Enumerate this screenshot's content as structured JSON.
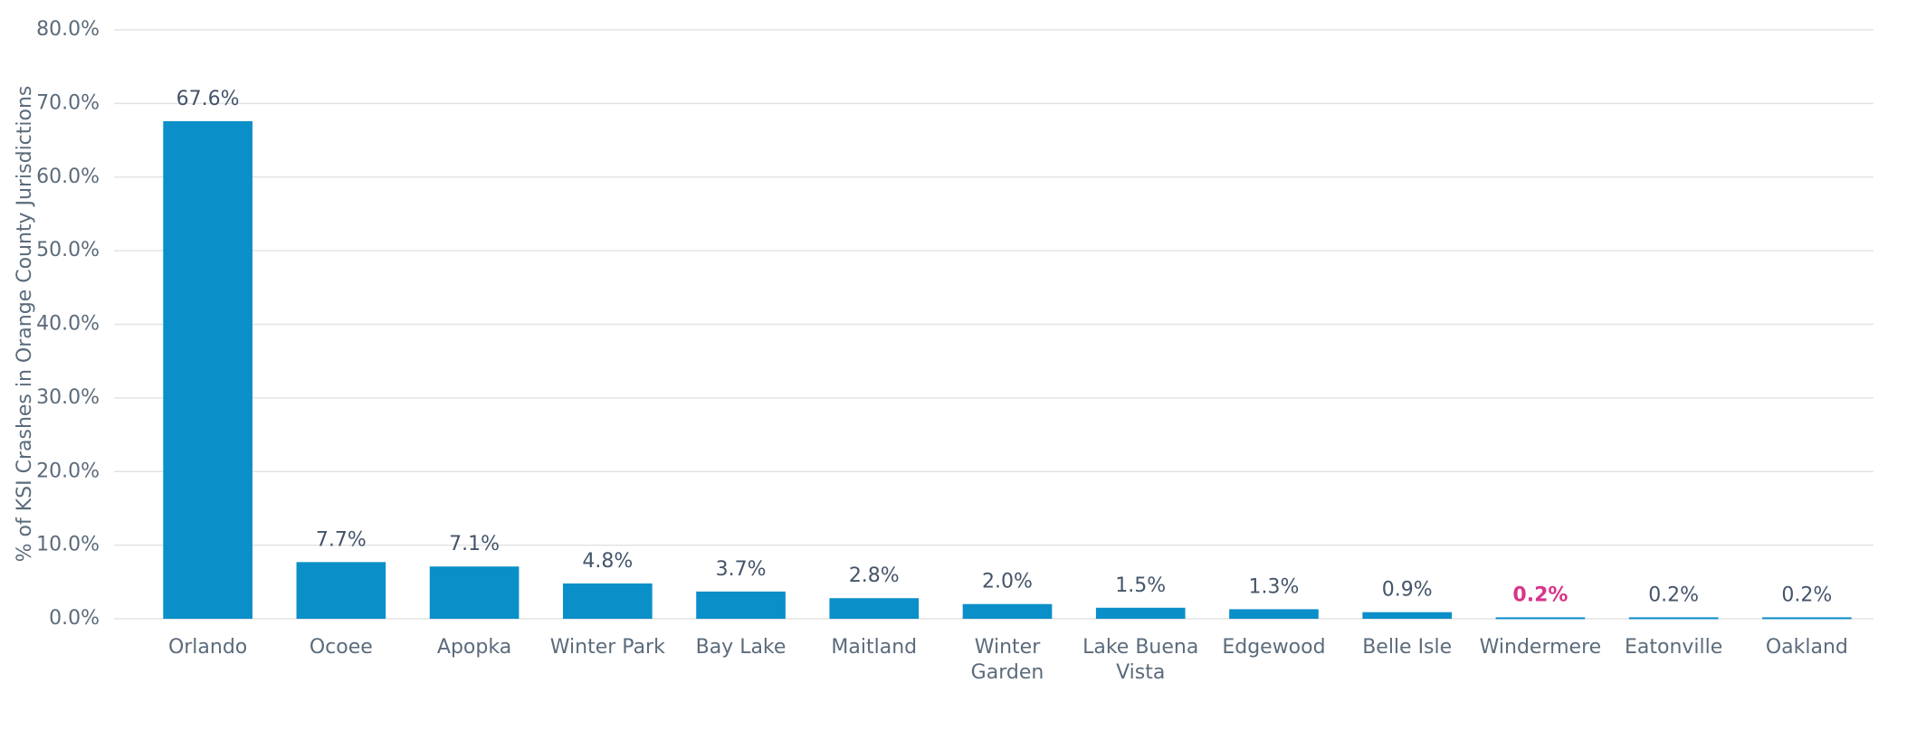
{
  "chart_data": {
    "type": "bar",
    "y_label": "% of KSI Crashes in Orange County Jurisdictions",
    "categories": [
      "Orlando",
      "Ocoee",
      "Apopka",
      "Winter Park",
      "Bay Lake",
      "Maitland",
      "Winter Garden",
      "Lake Buena Vista",
      "Edgewood",
      "Belle Isle",
      "Windermere",
      "Eatonville",
      "Oakland"
    ],
    "values": [
      67.6,
      7.7,
      7.1,
      4.8,
      3.7,
      2.8,
      2.0,
      1.5,
      1.3,
      0.9,
      0.2,
      0.2,
      0.2
    ],
    "value_labels": [
      "67.6%",
      "7.7%",
      "7.1%",
      "4.8%",
      "3.7%",
      "2.8%",
      "2.0%",
      "1.5%",
      "1.3%",
      "0.9%",
      "0.2%",
      "0.2%",
      "0.2%"
    ],
    "value_label_colors": [
      "#44546a",
      "#44546a",
      "#44546a",
      "#44546a",
      "#44546a",
      "#44546a",
      "#44546a",
      "#44546a",
      "#44546a",
      "#44546a",
      "#d6368a",
      "#44546a",
      "#44546a"
    ],
    "color": "#0b8fc9",
    "ylim": [
      0,
      80
    ],
    "yticks": [
      {
        "value": 0,
        "label": "0.0%"
      },
      {
        "value": 10,
        "label": "10.0%"
      },
      {
        "value": 20,
        "label": "20.0%"
      },
      {
        "value": 30,
        "label": "30.0%"
      },
      {
        "value": 40,
        "label": "40.0%"
      },
      {
        "value": 50,
        "label": "50.0%"
      },
      {
        "value": 60,
        "label": "60.0%"
      },
      {
        "value": 70,
        "label": "70.0%"
      },
      {
        "value": 80,
        "label": "80.0%"
      }
    ],
    "grid": true
  }
}
